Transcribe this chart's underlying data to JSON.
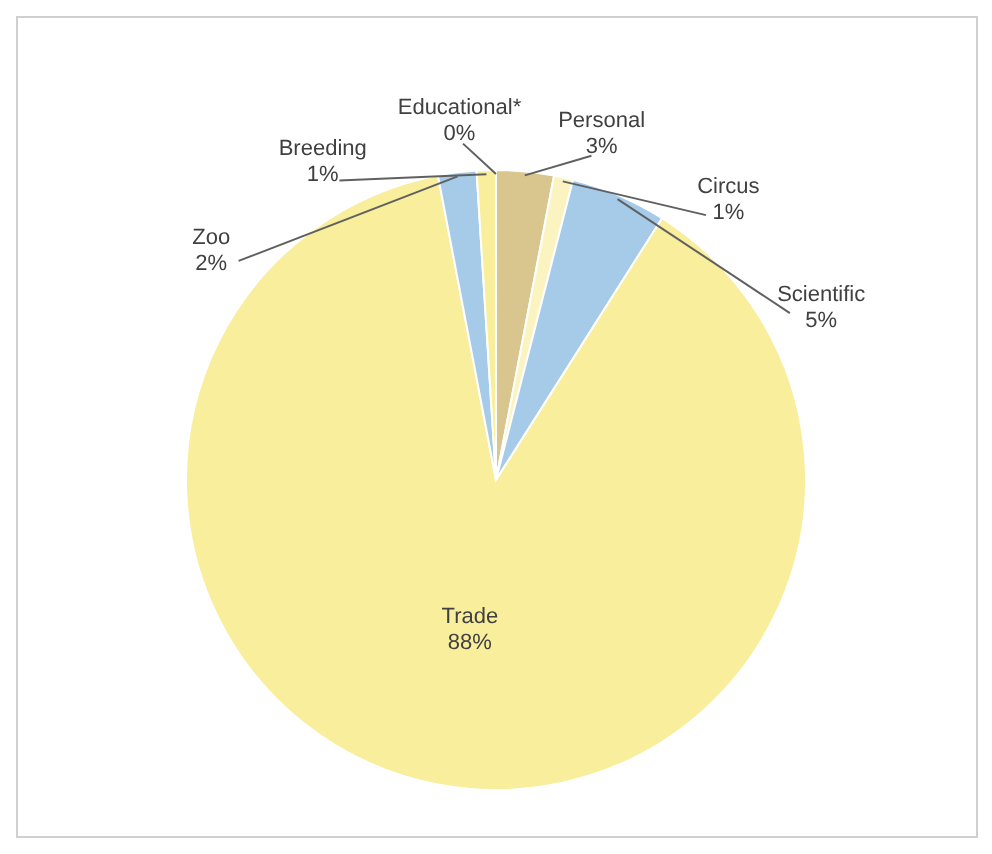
{
  "chart_data": {
    "type": "pie",
    "categories": [
      "Educational*",
      "Personal",
      "Circus",
      "Scientific",
      "Trade",
      "Zoo",
      "Breeding"
    ],
    "values": [
      0,
      3,
      1,
      5,
      88,
      2,
      1
    ],
    "value_labels": [
      "0%",
      "3%",
      "1%",
      "5%",
      "88%",
      "2%",
      "1%"
    ],
    "colors": [
      "#e6e6e6",
      "#d8c68e",
      "#fbf4c0",
      "#a6cbe8",
      "#f8ee9c",
      "#a6cbe8",
      "#f8ee9c"
    ],
    "legend": false
  }
}
